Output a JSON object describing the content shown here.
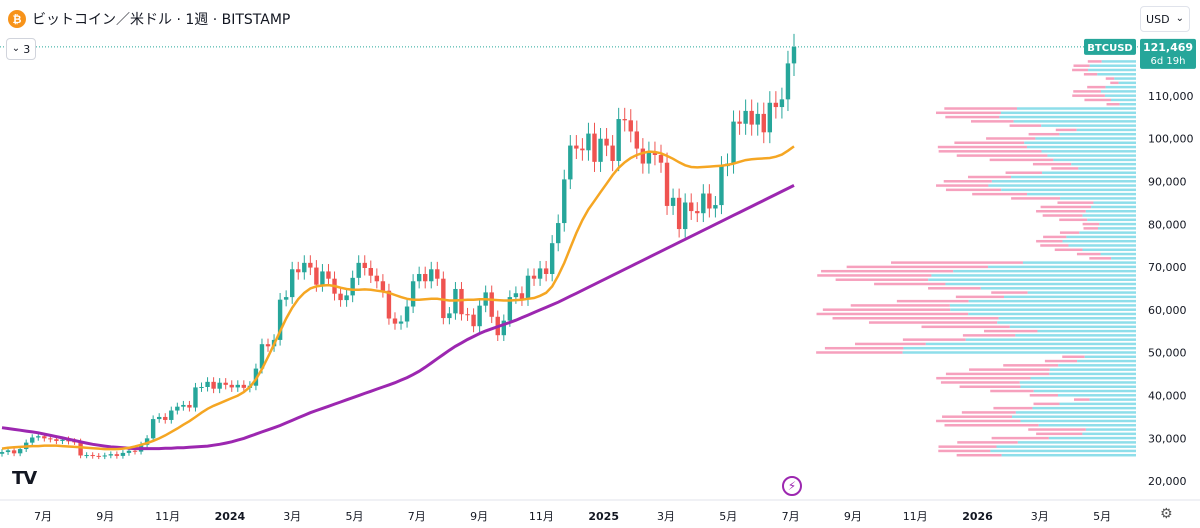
{
  "header": {
    "title": "ビットコイン／米ドル · 1週 · BITSTAMP",
    "coin_symbol": "₿",
    "collapse_count": "3",
    "currency": "USD"
  },
  "colors": {
    "up": "#26a69a",
    "down": "#ef5350",
    "ma_short": "#f5a623",
    "ma_long": "#9c27b0",
    "price_label_bg": "#26a69a",
    "vp_up": "#7ad8e6",
    "vp_down": "#f48fb1"
  },
  "icons": {
    "logo": "tradingview-logo",
    "flash": "lightning-icon",
    "settings": "gear-icon"
  },
  "price_label": {
    "ticker": "BTCUSD",
    "price": "121,469",
    "countdown": "6d 19h"
  },
  "chart_data": {
    "type": "candlestick",
    "x_ticks": [
      {
        "label": "7月",
        "bold": false
      },
      {
        "label": "9月",
        "bold": false
      },
      {
        "label": "11月",
        "bold": false
      },
      {
        "label": "2024",
        "bold": true
      },
      {
        "label": "3月",
        "bold": false
      },
      {
        "label": "5月",
        "bold": false
      },
      {
        "label": "7月",
        "bold": false
      },
      {
        "label": "9月",
        "bold": false
      },
      {
        "label": "11月",
        "bold": false
      },
      {
        "label": "2025",
        "bold": true
      },
      {
        "label": "3月",
        "bold": false
      },
      {
        "label": "5月",
        "bold": false
      },
      {
        "label": "7月",
        "bold": false
      },
      {
        "label": "9月",
        "bold": false
      },
      {
        "label": "11月",
        "bold": false
      },
      {
        "label": "2026",
        "bold": true
      },
      {
        "label": "3月",
        "bold": false
      },
      {
        "label": "5月",
        "bold": false
      }
    ],
    "y_ticks": [
      20000,
      30000,
      40000,
      50000,
      60000,
      70000,
      80000,
      90000,
      100000,
      110000
    ],
    "y_tick_labels": [
      "20,000",
      "30,000",
      "40,000",
      "50,000",
      "60,000",
      "70,000",
      "80,000",
      "90,000",
      "100,000",
      "110,000"
    ],
    "ylim": [
      17000,
      124000
    ],
    "last_price": 121469,
    "ohlc_close": [
      26800,
      27200,
      26500,
      27500,
      29000,
      30200,
      30500,
      30000,
      29800,
      29400,
      29700,
      29300,
      29200,
      26000,
      26100,
      25900,
      25800,
      26000,
      26300,
      25900,
      26600,
      27100,
      26900,
      28500,
      30000,
      34500,
      35000,
      34300,
      36500,
      37400,
      37800,
      37200,
      41900,
      42000,
      43200,
      41600,
      43000,
      42500,
      41900,
      42500,
      41800,
      42300,
      46300,
      52000,
      51500,
      53000,
      62400,
      63000,
      69500,
      68800,
      71000,
      69900,
      65900,
      69000,
      67300,
      63800,
      62300,
      63400,
      67500,
      71000,
      69800,
      68000,
      66700,
      64500,
      58000,
      56800,
      57300,
      60800,
      66700,
      68400,
      66700,
      69500,
      67300,
      58100,
      59200,
      64900,
      59000,
      58900,
      56200,
      61000,
      64100,
      58400,
      54100,
      57500,
      63000,
      63900,
      62500,
      68000,
      67300,
      69700,
      68400,
      75600,
      80300,
      90500,
      98400,
      97700,
      97300,
      101200,
      94600,
      100000,
      98400,
      94800,
      104600,
      104300,
      101700,
      97700,
      94200,
      96900,
      96200,
      94400,
      84300,
      86200,
      78900,
      85100,
      83100,
      82600,
      87200,
      83700,
      84500,
      93600,
      94200,
      104000,
      103500,
      106500,
      103300,
      105800,
      101500,
      108400,
      107400,
      109200,
      117600,
      121469
    ],
    "ma_short": [
      27600,
      27800,
      27900,
      28000,
      28100,
      28200,
      28200,
      28300,
      28300,
      28300,
      28200,
      28100,
      28000,
      27900,
      27800,
      27700,
      27600,
      27500,
      27500,
      27500,
      27600,
      27800,
      28100,
      28500,
      28900,
      29400,
      30000,
      30700,
      31500,
      32300,
      33200,
      34000,
      35000,
      36000,
      36900,
      37600,
      38200,
      38800,
      39400,
      40000,
      40800,
      42000,
      43800,
      46200,
      49000,
      52000,
      55000,
      58000,
      60500,
      62500,
      64000,
      65000,
      65500,
      65700,
      65800,
      65600,
      65200,
      64900,
      64700,
      64700,
      64800,
      64700,
      64500,
      64300,
      64000,
      63500,
      63000,
      62600,
      62400,
      62400,
      62500,
      62600,
      62600,
      62400,
      62200,
      62200,
      62300,
      62400,
      62400,
      62500,
      62500,
      62400,
      62300,
      62200,
      62200,
      62300,
      62400,
      62600,
      62800,
      63300,
      64000,
      65500,
      68000,
      71000,
      74500,
      78000,
      81000,
      83500,
      85500,
      87500,
      89500,
      91500,
      93200,
      94500,
      95500,
      96200,
      96700,
      97000,
      96900,
      96600,
      96000,
      95300,
      94500,
      93800,
      93400,
      93300,
      93400,
      93500,
      93600,
      93700,
      93900,
      94200,
      94600,
      95000,
      95200,
      95300,
      95400,
      95500,
      95800,
      96300,
      97200,
      98200
    ],
    "ma_long": [
      32500,
      32300,
      32100,
      31900,
      31700,
      31500,
      31300,
      31000,
      30700,
      30400,
      30100,
      29800,
      29500,
      29200,
      28900,
      28600,
      28400,
      28200,
      28000,
      27900,
      27800,
      27700,
      27600,
      27600,
      27600,
      27600,
      27600,
      27700,
      27700,
      27800,
      27800,
      27900,
      28000,
      28100,
      28200,
      28400,
      28600,
      28900,
      29200,
      29600,
      30000,
      30500,
      31000,
      31500,
      32000,
      32500,
      33000,
      33600,
      34200,
      34800,
      35400,
      36000,
      36500,
      37000,
      37500,
      38000,
      38500,
      39000,
      39500,
      40000,
      40500,
      41000,
      41500,
      42000,
      42500,
      43000,
      43600,
      44200,
      44900,
      45700,
      46600,
      47600,
      48600,
      49600,
      50600,
      51500,
      52300,
      53100,
      53800,
      54500,
      55100,
      55600,
      56100,
      56600,
      57100,
      57600,
      58200,
      58800,
      59400,
      60000,
      60600,
      61200,
      61800,
      62500,
      63200,
      63900,
      64600,
      65300,
      66000,
      66700,
      67400,
      68100,
      68800,
      69500,
      70200,
      70900,
      71600,
      72300,
      73000,
      73700,
      74400,
      75100,
      75800,
      76500,
      77200,
      77900,
      78600,
      79300,
      80000,
      80700,
      81400,
      82100,
      82800,
      83500,
      84200,
      84900,
      85600,
      86300,
      87000,
      87700,
      88400,
      89100
    ],
    "ma_long_note": "",
    "grid": false,
    "legend": "none"
  }
}
